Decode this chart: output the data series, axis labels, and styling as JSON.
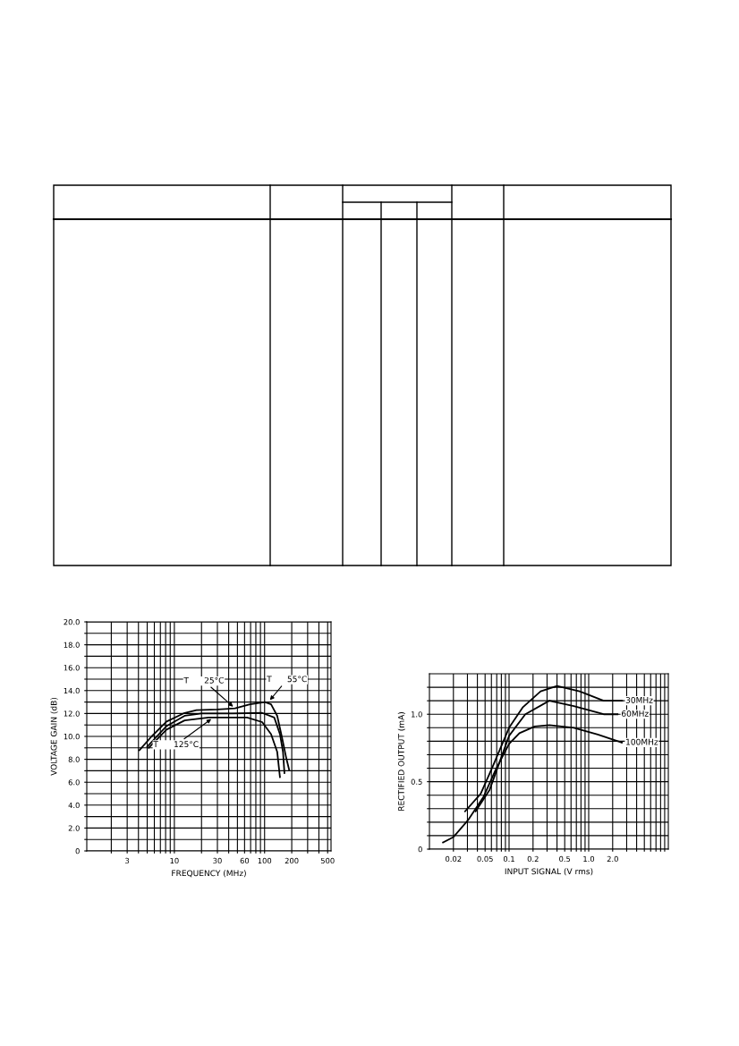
{
  "chart_data": [
    {
      "type": "line",
      "xlabel": "FREQUENCY (MHz)",
      "ylabel": "VOLTAGE GAIN (dB)",
      "log": "x",
      "grid": true,
      "marker": "none",
      "line_style": "solid",
      "xlim": [
        1.07,
        545
      ],
      "ylim": [
        0,
        20
      ],
      "xticks": [
        {
          "value": 2,
          "label": null
        },
        {
          "value": 3,
          "label": "3"
        },
        {
          "value": 4,
          "label": null
        },
        {
          "value": 5,
          "label": null
        },
        {
          "value": 6,
          "label": null
        },
        {
          "value": 7,
          "label": null
        },
        {
          "value": 8,
          "label": null
        },
        {
          "value": 9,
          "label": null
        },
        10,
        {
          "value": 20,
          "label": null
        },
        30,
        {
          "value": 40,
          "label": null
        },
        {
          "value": 50,
          "label": null
        },
        60,
        {
          "value": 70,
          "label": null
        },
        {
          "value": 80,
          "label": null
        },
        {
          "value": 90,
          "label": null
        },
        100,
        200,
        {
          "value": 300,
          "label": null
        },
        {
          "value": 400,
          "label": null
        },
        500
      ],
      "yticks": [
        0,
        {
          "value": 1,
          "label": null
        },
        {
          "value": 2,
          "label": "2.0"
        },
        {
          "value": 3,
          "label": null
        },
        {
          "value": 4,
          "label": "4.0"
        },
        {
          "value": 5,
          "label": null
        },
        {
          "value": 6,
          "label": "6.0"
        },
        {
          "value": 7,
          "label": null
        },
        {
          "value": 8,
          "label": "8.0"
        },
        {
          "value": 9,
          "label": null
        },
        {
          "value": 10,
          "label": "10.0"
        },
        {
          "value": 11,
          "label": null
        },
        {
          "value": 12,
          "label": "12.0"
        },
        {
          "value": 13,
          "label": null
        },
        {
          "value": 14,
          "label": "14.0"
        },
        {
          "value": 15,
          "label": null
        },
        {
          "value": 16,
          "label": "16.0"
        },
        {
          "value": 17,
          "label": null
        },
        {
          "value": 18,
          "label": "18.0"
        },
        {
          "value": 19,
          "label": null
        },
        {
          "value": 20,
          "label": "20.0"
        }
      ],
      "series": [
        {
          "color": "#000000",
          "x": [
            4.1,
            5.6,
            8.2,
            13,
            17.6,
            30,
            47,
            69,
            101,
            118,
            138,
            155,
            174,
            187
          ],
          "values": [
            8.8,
            10.0,
            11.3,
            12.05,
            12.3,
            12.35,
            12.45,
            12.8,
            13.0,
            12.8,
            11.8,
            10.0,
            8.1,
            7.1
          ]
        },
        {
          "color": "#000000",
          "x": [
            5,
            8.2,
            13,
            20,
            44,
            94,
            128,
            148,
            160,
            166
          ],
          "values": [
            9.1,
            10.9,
            11.8,
            12.0,
            12.0,
            12.05,
            11.65,
            10.2,
            8.65,
            6.8
          ]
        },
        {
          "color": "#000000",
          "x": [
            5.2,
            8.2,
            13,
            24,
            64,
            94,
            118,
            138,
            148
          ],
          "values": [
            9.0,
            10.6,
            11.4,
            11.65,
            11.65,
            11.25,
            10.2,
            8.65,
            6.45
          ]
        }
      ],
      "annotations": [
        {
          "text": "T      25°C",
          "x": 47,
          "y": 12.45
        },
        {
          "text": "T      55°C",
          "x": 110,
          "y": 13.0
        },
        {
          "text": "T      125°C",
          "x": 27,
          "y": 11.65
        }
      ]
    },
    {
      "type": "line",
      "xlabel": "INPUT SIGNAL (V rms)",
      "ylabel": "RECTIFIED OUTPUT (mA)",
      "log": "x",
      "grid": true,
      "marker": "none",
      "line_style": "solid",
      "xlim": [
        0.01,
        10
      ],
      "ylim": [
        0,
        1.3
      ],
      "xticks": [
        {
          "value": 0.02,
          "label": "0.02"
        },
        {
          "value": 0.03,
          "label": null
        },
        {
          "value": 0.04,
          "label": null
        },
        {
          "value": 0.05,
          "label": "0.05"
        },
        {
          "value": 0.06,
          "label": null
        },
        {
          "value": 0.07,
          "label": null
        },
        {
          "value": 0.08,
          "label": null
        },
        {
          "value": 0.09,
          "label": null
        },
        {
          "value": 0.1,
          "label": "0.1"
        },
        {
          "value": 0.2,
          "label": "0.2"
        },
        {
          "value": 0.3,
          "label": null
        },
        {
          "value": 0.4,
          "label": null
        },
        {
          "value": 0.5,
          "label": "0.5"
        },
        {
          "value": 0.6,
          "label": null
        },
        {
          "value": 0.7,
          "label": null
        },
        {
          "value": 0.8,
          "label": null
        },
        {
          "value": 0.9,
          "label": null
        },
        {
          "value": 1,
          "label": "1.0"
        },
        {
          "value": 2,
          "label": "2.0"
        },
        {
          "value": 3,
          "label": null
        },
        {
          "value": 4,
          "label": null
        },
        {
          "value": 5,
          "label": null
        },
        {
          "value": 6,
          "label": null
        },
        {
          "value": 7,
          "label": null
        },
        {
          "value": 8,
          "label": null
        },
        {
          "value": 9,
          "label": null
        }
      ],
      "yticks": [
        0,
        {
          "value": 0.1,
          "label": null
        },
        {
          "value": 0.2,
          "label": null
        },
        {
          "value": 0.3,
          "label": null
        },
        {
          "value": 0.4,
          "label": null
        },
        {
          "value": 0.5,
          "label": "0.5"
        },
        {
          "value": 0.6,
          "label": null
        },
        {
          "value": 0.7,
          "label": null
        },
        {
          "value": 0.8,
          "label": null
        },
        {
          "value": 0.9,
          "label": null
        },
        {
          "value": 1.0,
          "label": "1.0"
        },
        {
          "value": 1.1,
          "label": null
        },
        {
          "value": 1.2,
          "label": null
        }
      ],
      "series": [
        {
          "color": "#000000",
          "x": [
            0.028,
            0.044,
            0.062,
            0.1,
            0.148,
            0.249,
            0.4,
            0.77,
            1.54,
            2.6
          ],
          "values": [
            0.28,
            0.41,
            0.61,
            0.9,
            1.05,
            1.17,
            1.21,
            1.17,
            1.1,
            1.1
          ]
        },
        {
          "color": "#000000",
          "x": [
            0.038,
            0.057,
            0.1,
            0.16,
            0.32,
            0.65,
            1.54,
            2.3
          ],
          "values": [
            0.28,
            0.44,
            0.84,
            1.0,
            1.1,
            1.06,
            1.0,
            1.0
          ]
        },
        {
          "color": "#000000",
          "x": [
            0.0148,
            0.02,
            0.031,
            0.048,
            0.068,
            0.1,
            0.135,
            0.21,
            0.32,
            0.65,
            1.3,
            2.6
          ],
          "values": [
            0.05,
            0.09,
            0.22,
            0.39,
            0.59,
            0.78,
            0.86,
            0.91,
            0.92,
            0.9,
            0.85,
            0.79
          ]
        }
      ],
      "annotations": [
        {
          "text": "30MHz",
          "x": 2.6,
          "y": 1.1
        },
        {
          "text": "60MHz",
          "x": 2.3,
          "y": 1.0
        },
        {
          "text": "100MHz",
          "x": 2.6,
          "y": 0.79
        }
      ]
    }
  ]
}
